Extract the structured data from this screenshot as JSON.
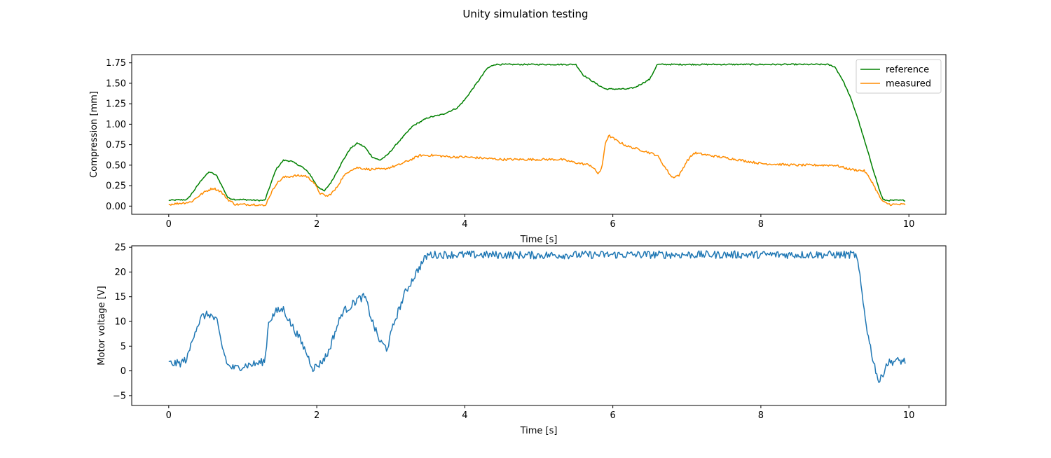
{
  "figure": {
    "suptitle": "Unity simulation testing"
  },
  "chart_data": [
    {
      "type": "line",
      "title": "",
      "xlabel": "Time [s]",
      "ylabel": "Compression [mm]",
      "xlim": [
        -0.5,
        10.5
      ],
      "ylim": [
        -0.1,
        1.85
      ],
      "xticks": [
        0,
        2,
        4,
        6,
        8,
        10
      ],
      "xtick_labels": [
        "0",
        "2",
        "4",
        "6",
        "8",
        "10"
      ],
      "yticks": [
        0.0,
        0.25,
        0.5,
        0.75,
        1.0,
        1.25,
        1.5,
        1.75
      ],
      "ytick_labels": [
        "0.00",
        "0.25",
        "0.50",
        "0.75",
        "1.00",
        "1.25",
        "1.50",
        "1.75"
      ],
      "grid": false,
      "legend": "top-right",
      "series": [
        {
          "name": "reference",
          "color": "#008000",
          "noise": 0.008,
          "x": [
            0,
            0.25,
            0.35,
            0.45,
            0.55,
            0.65,
            0.8,
            0.9,
            1.0,
            1.2,
            1.3,
            1.35,
            1.45,
            1.55,
            1.65,
            1.8,
            1.9,
            2.0,
            2.1,
            2.2,
            2.35,
            2.45,
            2.55,
            2.65,
            2.75,
            2.85,
            2.95,
            3.1,
            3.3,
            3.5,
            3.7,
            3.9,
            4.0,
            4.2,
            4.3,
            4.4,
            4.6,
            5.0,
            5.5,
            5.6,
            5.8,
            5.9,
            6.2,
            6.3,
            6.5,
            6.6,
            7.0,
            8.0,
            8.9,
            9.0,
            9.1,
            9.2,
            9.3,
            9.4,
            9.5,
            9.6,
            9.65,
            9.7,
            9.8,
            9.95
          ],
          "y": [
            0.07,
            0.08,
            0.2,
            0.33,
            0.42,
            0.37,
            0.1,
            0.08,
            0.08,
            0.07,
            0.07,
            0.2,
            0.45,
            0.56,
            0.55,
            0.48,
            0.4,
            0.25,
            0.18,
            0.3,
            0.55,
            0.7,
            0.77,
            0.72,
            0.6,
            0.56,
            0.62,
            0.78,
            0.98,
            1.08,
            1.12,
            1.2,
            1.3,
            1.55,
            1.68,
            1.73,
            1.73,
            1.73,
            1.73,
            1.6,
            1.48,
            1.43,
            1.43,
            1.45,
            1.55,
            1.73,
            1.73,
            1.73,
            1.73,
            1.7,
            1.55,
            1.35,
            1.1,
            0.8,
            0.5,
            0.2,
            0.08,
            0.07,
            0.07,
            0.07
          ]
        },
        {
          "name": "measured",
          "color": "#ff8c00",
          "noise": 0.014,
          "x": [
            0,
            0.3,
            0.4,
            0.5,
            0.6,
            0.7,
            0.8,
            0.9,
            1.0,
            1.2,
            1.3,
            1.35,
            1.45,
            1.55,
            1.7,
            1.85,
            1.95,
            2.05,
            2.15,
            2.25,
            2.35,
            2.45,
            2.55,
            2.7,
            2.9,
            3.1,
            3.3,
            3.4,
            3.6,
            3.8,
            4.0,
            4.5,
            5.0,
            5.3,
            5.5,
            5.7,
            5.8,
            5.85,
            5.9,
            5.95,
            6.05,
            6.2,
            6.4,
            6.6,
            6.7,
            6.8,
            6.9,
            7.0,
            7.1,
            7.3,
            7.6,
            8.0,
            8.5,
            9.0,
            9.2,
            9.4,
            9.5,
            9.6,
            9.65,
            9.75,
            9.95
          ],
          "y": [
            0.02,
            0.05,
            0.12,
            0.18,
            0.22,
            0.18,
            0.08,
            0.02,
            0.02,
            0.02,
            0.0,
            0.1,
            0.27,
            0.35,
            0.37,
            0.37,
            0.3,
            0.15,
            0.12,
            0.2,
            0.35,
            0.44,
            0.47,
            0.45,
            0.45,
            0.5,
            0.58,
            0.62,
            0.62,
            0.6,
            0.6,
            0.57,
            0.57,
            0.57,
            0.53,
            0.5,
            0.4,
            0.45,
            0.78,
            0.86,
            0.8,
            0.73,
            0.68,
            0.62,
            0.48,
            0.35,
            0.38,
            0.55,
            0.65,
            0.62,
            0.58,
            0.52,
            0.5,
            0.5,
            0.45,
            0.43,
            0.3,
            0.12,
            0.05,
            0.02,
            0.02
          ]
        }
      ]
    },
    {
      "type": "line",
      "title": "",
      "xlabel": "Time [s]",
      "ylabel": "Motor voltage [V]",
      "xlim": [
        -0.5,
        10.5
      ],
      "ylim": [
        -7,
        25.3
      ],
      "xticks": [
        0,
        2,
        4,
        6,
        8,
        10
      ],
      "xtick_labels": [
        "0",
        "2",
        "4",
        "6",
        "8",
        "10"
      ],
      "yticks": [
        -5,
        0,
        5,
        10,
        15,
        20,
        25
      ],
      "ytick_labels": [
        "−5",
        "0",
        "5",
        "10",
        "15",
        "20",
        "25"
      ],
      "grid": false,
      "series": [
        {
          "color": "#1f77b4",
          "noise": 0.8,
          "x": [
            0,
            0.15,
            0.25,
            0.35,
            0.45,
            0.55,
            0.65,
            0.72,
            0.8,
            0.9,
            1.0,
            1.2,
            1.3,
            1.35,
            1.45,
            1.55,
            1.65,
            1.75,
            1.85,
            1.95,
            2.05,
            2.15,
            2.25,
            2.35,
            2.45,
            2.55,
            2.65,
            2.75,
            2.85,
            2.95,
            3.05,
            3.2,
            3.35,
            3.45,
            3.5,
            4.0,
            5.0,
            6.0,
            7.0,
            8.0,
            9.0,
            9.28,
            9.32,
            9.38,
            9.45,
            9.52,
            9.6,
            9.7,
            9.8,
            9.95
          ],
          "y": [
            1.5,
            1.5,
            2.5,
            8.0,
            11.0,
            11.5,
            10.0,
            5.0,
            1.0,
            0.5,
            1.0,
            1.5,
            2.0,
            10.0,
            12.0,
            12.5,
            9.5,
            7.0,
            4.0,
            0.5,
            1.5,
            3.5,
            8.0,
            12.0,
            13.0,
            14.5,
            15.0,
            10.0,
            6.0,
            4.5,
            10.0,
            16.0,
            20.0,
            22.5,
            23.5,
            23.5,
            23.4,
            23.5,
            23.5,
            23.5,
            23.5,
            23.5,
            21.0,
            14.0,
            7.0,
            2.0,
            -2.5,
            1.5,
            2.0,
            2.0
          ]
        }
      ]
    }
  ]
}
